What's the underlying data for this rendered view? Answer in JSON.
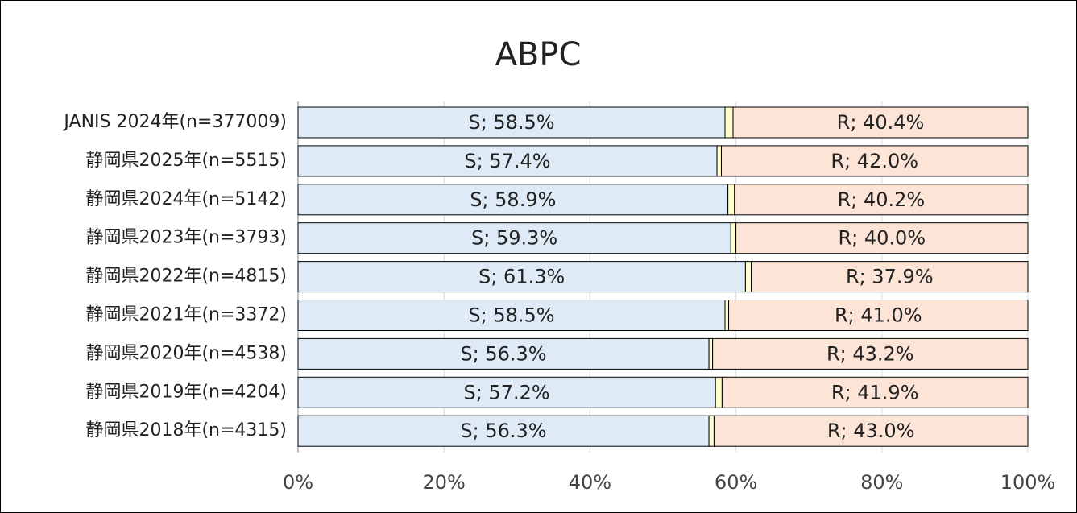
{
  "chart_data": {
    "type": "stacked_bar_horizontal",
    "title": "ABPC",
    "categories": [
      "JANIS 2024年(n=377009)",
      "静岡県2025年(n=5515)",
      "静岡県2024年(n=5142)",
      "静岡県2023年(n=3793)",
      "静岡県2022年(n=4815)",
      "静岡県2021年(n=3372)",
      "静岡県2020年(n=4538)",
      "静岡県2019年(n=4204)",
      "静岡県2018年(n=4315)"
    ],
    "series": [
      {
        "name": "S",
        "color": "#deebf7",
        "values": [
          58.5,
          57.4,
          58.9,
          59.3,
          61.3,
          58.5,
          56.3,
          57.2,
          56.3
        ],
        "value_labels": [
          "S; 58.5%",
          "S; 57.4%",
          "S; 58.9%",
          "S; 59.3%",
          "S; 61.3%",
          "S; 58.5%",
          "S; 56.3%",
          "S; 57.2%",
          "S; 56.3%"
        ]
      },
      {
        "color": "#ffffcc",
        "values": [
          1.1,
          0.6,
          0.9,
          0.7,
          0.8,
          0.5,
          0.5,
          0.9,
          0.7
        ]
      },
      {
        "name": "R",
        "color": "#fce4d6",
        "values": [
          40.4,
          42.0,
          40.2,
          40.0,
          37.9,
          41.0,
          43.2,
          41.9,
          43.0
        ],
        "value_labels": [
          "R; 40.4%",
          "R; 42.0%",
          "R; 40.2%",
          "R; 40.0%",
          "R; 37.9%",
          "R; 41.0%",
          "R; 43.2%",
          "R; 41.9%",
          "R; 43.0%"
        ]
      }
    ],
    "xlim": [
      0,
      100
    ],
    "xticks": [
      {
        "value": 0,
        "label": "0%"
      },
      {
        "value": 20,
        "label": "20%"
      },
      {
        "value": 40,
        "label": "40%"
      },
      {
        "value": 60,
        "label": "60%"
      },
      {
        "value": 80,
        "label": "80%"
      },
      {
        "value": 100,
        "label": "100%"
      }
    ],
    "grid": true
  }
}
